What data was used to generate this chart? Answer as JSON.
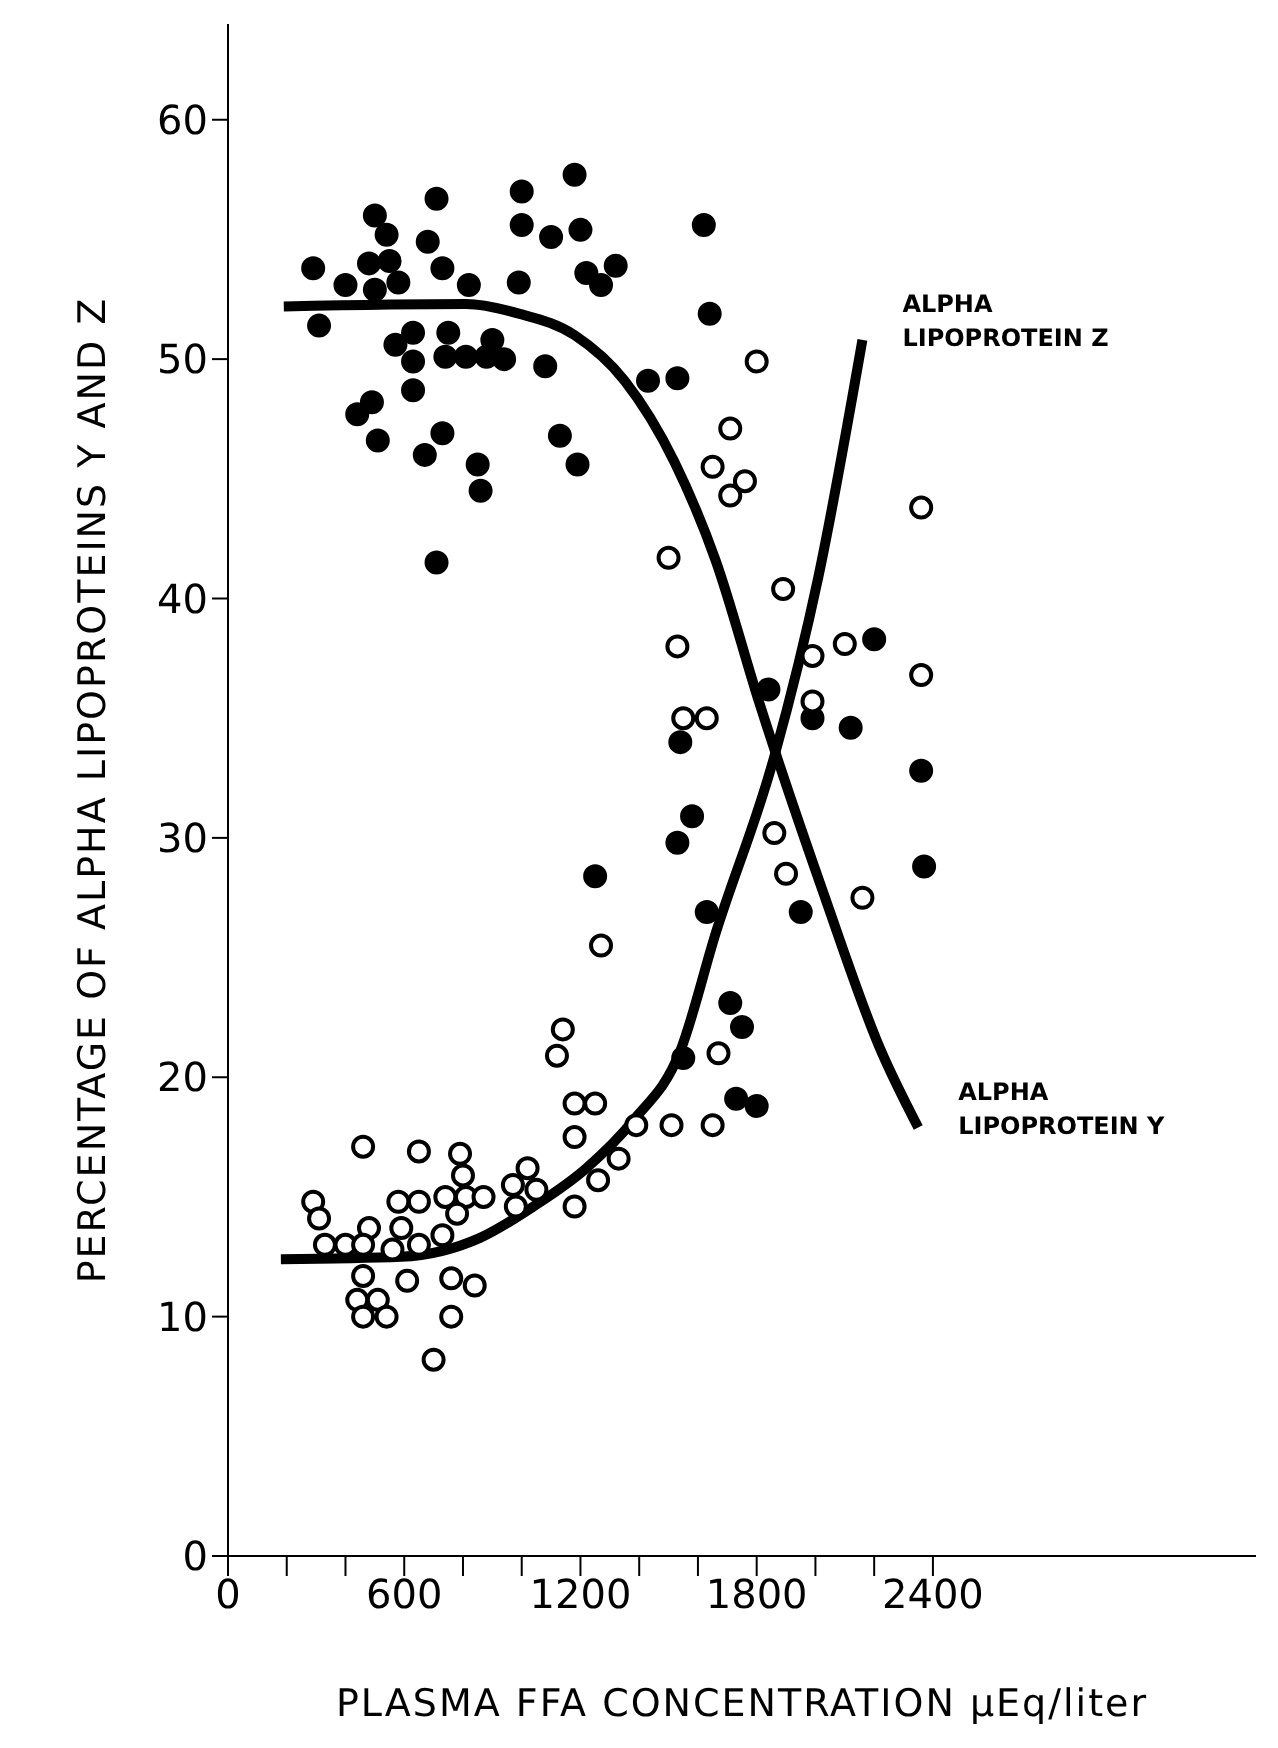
{
  "chart_data": {
    "type": "scatter",
    "xlabel": "PLASMA FFA CONCENTRATION μEq/liter",
    "ylabel": "PERCENTAGE OF ALPHA LIPOPROTEINS Y AND Z",
    "xlim": [
      0,
      3500
    ],
    "ylim": [
      0,
      64
    ],
    "xticks": [
      0,
      {
        "value": 200,
        "label": null
      },
      {
        "value": 400,
        "label": null
      },
      600,
      {
        "value": 800,
        "label": null
      },
      {
        "value": 1000,
        "label": null
      },
      1200,
      {
        "value": 1400,
        "label": null
      },
      {
        "value": 1600,
        "label": null
      },
      1800,
      {
        "value": 2000,
        "label": null
      },
      {
        "value": 2200,
        "label": null
      },
      2400
    ],
    "yticks": [
      0,
      10,
      20,
      30,
      40,
      50,
      60
    ],
    "marker": "circle",
    "series": [
      {
        "color": "#000000",
        "x": [
          290,
          310,
          400,
          480,
          500,
          500,
          540,
          550,
          580,
          570,
          630,
          630,
          630,
          490,
          440,
          510,
          710,
          680,
          730,
          820,
          750,
          740,
          810,
          880,
          940,
          900,
          730,
          670,
          850,
          860,
          710,
          1000,
          1000,
          990,
          1100,
          1200,
          1180,
          1220,
          1270,
          1320,
          1080,
          1130,
          1190,
          1430,
          1530,
          1620,
          1640,
          2200,
          1840,
          1540,
          1580,
          1530,
          1250,
          1630,
          1550,
          1990,
          2120,
          2360,
          2370,
          1950,
          1710,
          1750,
          1730,
          1800
        ],
        "values": [
          53.8,
          51.4,
          53.1,
          54.0,
          52.9,
          56.0,
          55.2,
          54.1,
          53.2,
          50.6,
          51.1,
          49.9,
          48.7,
          48.2,
          47.7,
          46.6,
          56.7,
          54.9,
          53.8,
          53.1,
          51.1,
          50.1,
          50.1,
          50.1,
          50.0,
          50.8,
          46.9,
          46.0,
          45.6,
          44.5,
          41.5,
          57.0,
          55.6,
          53.2,
          55.1,
          55.4,
          57.7,
          53.6,
          53.1,
          53.9,
          49.7,
          46.8,
          45.6,
          49.1,
          49.2,
          55.6,
          51.9,
          38.3,
          36.2,
          34.0,
          30.9,
          29.8,
          28.4,
          26.9,
          20.8,
          35.0,
          34.6,
          32.8,
          28.8,
          26.9,
          23.1,
          22.1,
          19.1,
          18.8
        ]
      },
      {
        "color": "#ffffff",
        "x": [
          1800,
          1710,
          1650,
          1760,
          1710,
          2360,
          1500,
          1890,
          1530,
          1990,
          2100,
          2360,
          1990,
          1550,
          1630,
          1270,
          1140,
          1120,
          1180,
          1250,
          1180,
          1390,
          1510,
          1650,
          1330,
          1260,
          1180,
          1020,
          970,
          1050,
          980,
          460,
          650,
          790,
          800,
          740,
          810,
          870,
          580,
          650,
          780,
          290,
          310,
          480,
          590,
          730,
          330,
          400,
          460,
          560,
          650,
          460,
          610,
          760,
          840,
          440,
          510,
          460,
          540,
          760,
          700,
          1860,
          1900,
          2160,
          1670
        ],
        "values": [
          49.9,
          47.1,
          45.5,
          44.9,
          44.3,
          43.8,
          41.7,
          40.4,
          38.0,
          37.6,
          38.1,
          36.8,
          35.7,
          35.0,
          35.0,
          25.5,
          22.0,
          20.9,
          18.9,
          18.9,
          17.5,
          18.0,
          18.0,
          18.0,
          16.6,
          15.7,
          14.6,
          16.2,
          15.5,
          15.3,
          14.6,
          17.1,
          16.9,
          16.8,
          15.9,
          15.0,
          15.0,
          15.0,
          14.8,
          14.8,
          14.3,
          14.8,
          14.1,
          13.7,
          13.7,
          13.4,
          13.0,
          13.0,
          13.0,
          12.8,
          13.0,
          11.7,
          11.5,
          11.6,
          11.3,
          10.7,
          10.7,
          10.0,
          10.0,
          10.0,
          8.2,
          30.2,
          28.5,
          27.5,
          21.0
        ]
      },
      {
        "type": "line",
        "name": "ALPHA LIPOPROTEIN Z",
        "color": "#000000",
        "marker": "none",
        "x": [
          180,
          590,
          860,
          1040,
          1220,
          1380,
          1540,
          1660,
          1860,
          2010,
          2160
        ],
        "values": [
          12.4,
          12.5,
          13.3,
          14.6,
          16.2,
          18.2,
          21.1,
          26.0,
          33.4,
          40.9,
          50.8
        ]
      },
      {
        "type": "line",
        "name": "ALPHA LIPOPROTEIN Y",
        "color": "#000000",
        "marker": "none",
        "x": [
          190,
          810,
          990,
          1180,
          1350,
          1520,
          1660,
          1810,
          2030,
          2220,
          2350
        ],
        "values": [
          52.2,
          52.3,
          51.9,
          51.0,
          49.1,
          45.7,
          41.6,
          35.6,
          27.6,
          21.2,
          17.9
        ]
      }
    ]
  }
}
